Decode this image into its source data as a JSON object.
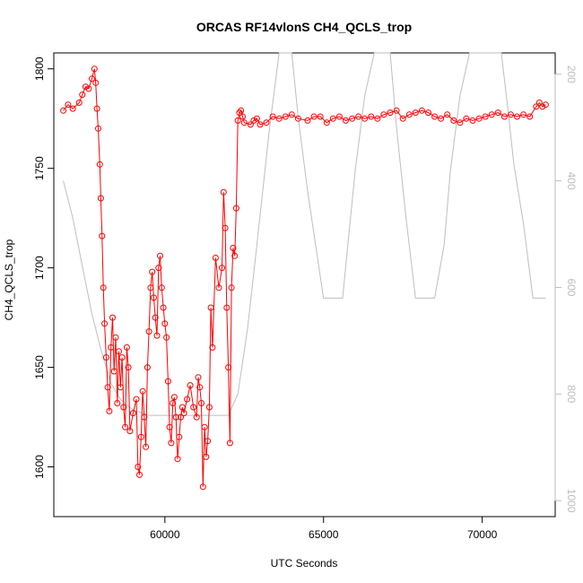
{
  "chart_data": {
    "type": "scatter",
    "title": "ORCAS RF14vlonS CH4_QCLS_trop",
    "xlabel": "UTC Seconds",
    "ylabel": "CH4_QCLS_trop",
    "xlim": [
      56500,
      72300
    ],
    "ylim": [
      1575,
      1808
    ],
    "y2lim": [
      160,
      1030
    ],
    "y2reverse": true,
    "x_ticks": [
      60000,
      65000,
      70000
    ],
    "y_ticks": [
      1600,
      1650,
      1700,
      1750,
      1800
    ],
    "y2_ticks": [
      200,
      400,
      600,
      800,
      1000
    ],
    "colors": {
      "main": "#ff0000",
      "secondary": "#bebebe",
      "axis": "#000000"
    },
    "series": [
      {
        "style": "points-and-line",
        "color": "#ff0000",
        "x": [
          56800,
          56950,
          57100,
          57300,
          57400,
          57500,
          57600,
          57700,
          57780,
          57820,
          57860,
          57900,
          57950,
          57980,
          58020,
          58060,
          58100,
          58150,
          58200,
          58250,
          58300,
          58350,
          58400,
          58450,
          58500,
          58550,
          58600,
          58650,
          58700,
          58750,
          58800,
          58850,
          58900,
          59000,
          59100,
          59150,
          59200,
          59250,
          59300,
          59350,
          59400,
          59450,
          59500,
          59550,
          59600,
          59650,
          59700,
          59750,
          59800,
          59850,
          59900,
          59950,
          60000,
          60050,
          60100,
          60150,
          60200,
          60250,
          60300,
          60350,
          60400,
          60450,
          60500,
          60550,
          60600,
          60700,
          60800,
          60900,
          61000,
          61050,
          61100,
          61150,
          61200,
          61250,
          61300,
          61350,
          61400,
          61450,
          61500,
          61600,
          61700,
          61800,
          61850,
          61900,
          61950,
          62000,
          62050,
          62100,
          62150,
          62200,
          62250,
          62300,
          62350,
          62400,
          62450,
          62500,
          62700,
          62800,
          62900,
          63000,
          63200,
          63400,
          63600,
          63800,
          64000,
          64200,
          64500,
          64700,
          64900,
          65100,
          65300,
          65500,
          65700,
          65900,
          66100,
          66300,
          66500,
          66700,
          66900,
          67100,
          67300,
          67500,
          67700,
          67900,
          68100,
          68300,
          68500,
          68700,
          68900,
          69100,
          69300,
          69500,
          69700,
          69900,
          70100,
          70300,
          70500,
          70700,
          70900,
          71100,
          71300,
          71500,
          71700,
          71800,
          71900,
          72000
        ],
        "y": [
          1779,
          1782,
          1780,
          1783,
          1787,
          1791,
          1790,
          1795,
          1800,
          1793,
          1780,
          1770,
          1752,
          1735,
          1716,
          1690,
          1672,
          1655,
          1640,
          1628,
          1660,
          1675,
          1648,
          1665,
          1632,
          1658,
          1640,
          1655,
          1630,
          1620,
          1660,
          1650,
          1618,
          1627,
          1634,
          1600,
          1596,
          1615,
          1638,
          1625,
          1610,
          1650,
          1668,
          1690,
          1698,
          1685,
          1675,
          1666,
          1700,
          1706,
          1690,
          1680,
          1672,
          1665,
          1643,
          1620,
          1612,
          1632,
          1635,
          1625,
          1604,
          1615,
          1625,
          1630,
          1627,
          1634,
          1641,
          1630,
          1625,
          1645,
          1640,
          1632,
          1590,
          1620,
          1605,
          1613,
          1630,
          1680,
          1660,
          1705,
          1690,
          1700,
          1738,
          1720,
          1680,
          1650,
          1612,
          1690,
          1710,
          1706,
          1730,
          1774,
          1778,
          1779,
          1776,
          1773,
          1772,
          1774,
          1775,
          1772,
          1773,
          1776,
          1775,
          1776,
          1777,
          1775,
          1774,
          1776,
          1776,
          1773,
          1775,
          1776,
          1774,
          1775,
          1776,
          1775,
          1776,
          1775,
          1777,
          1778,
          1779,
          1775,
          1777,
          1778,
          1779,
          1778,
          1776,
          1775,
          1777,
          1774,
          1773,
          1775,
          1774,
          1775,
          1776,
          1777,
          1778,
          1776,
          1777,
          1776,
          1777,
          1776,
          1781,
          1783,
          1781,
          1782
        ]
      },
      {
        "style": "line",
        "color": "#bebebe",
        "axis": "right",
        "x": [
          56800,
          57100,
          57400,
          57700,
          58000,
          58300,
          58600,
          59000,
          59500,
          60000,
          61000,
          62000,
          62300,
          62600,
          62900,
          63300,
          63600,
          63800,
          64000,
          64200,
          64500,
          65000,
          65300,
          65600,
          65800,
          66000,
          66300,
          66600,
          66900,
          67100,
          67300,
          67600,
          67900,
          68200,
          68500,
          68800,
          69000,
          69300,
          69600,
          69900,
          70200,
          70400,
          70600,
          70800,
          71000,
          71300,
          71600,
          71800,
          72000
        ],
        "y": [
          400,
          470,
          560,
          650,
          720,
          780,
          810,
          830,
          840,
          840,
          840,
          840,
          800,
          680,
          520,
          300,
          160,
          160,
          160,
          280,
          420,
          620,
          620,
          620,
          500,
          380,
          240,
          160,
          160,
          160,
          300,
          470,
          620,
          620,
          620,
          520,
          380,
          240,
          160,
          160,
          160,
          160,
          160,
          260,
          370,
          480,
          620,
          620,
          620
        ]
      }
    ]
  }
}
